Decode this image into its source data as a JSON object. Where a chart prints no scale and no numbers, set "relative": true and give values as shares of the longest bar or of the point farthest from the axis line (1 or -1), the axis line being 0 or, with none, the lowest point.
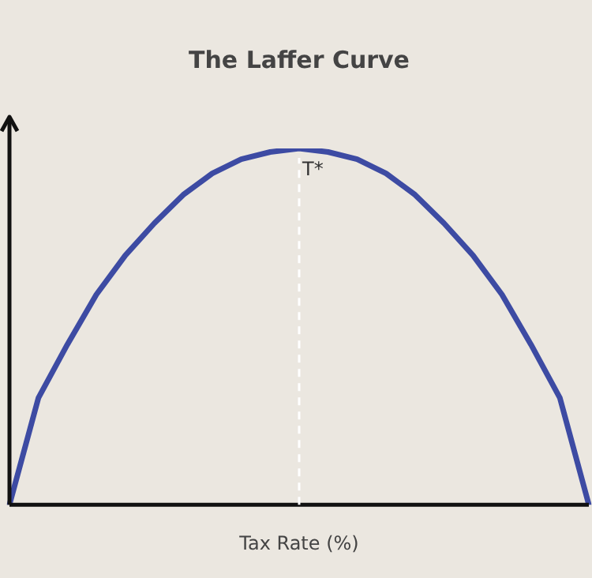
{
  "chart_data": {
    "type": "line",
    "title": "The Laffer Curve",
    "xlabel": "Tax Rate (%)",
    "relative": true,
    "marker": "none",
    "line_style": "solid",
    "categories": [
      null,
      null,
      null,
      null,
      null,
      null,
      null,
      null,
      null,
      null,
      null,
      null,
      null,
      null,
      null,
      null,
      null,
      null,
      null,
      null,
      null
    ],
    "series": [
      {
        "color": "#3d4ba3",
        "values": [
          0,
          0.3,
          0.45,
          0.59,
          0.7,
          0.79,
          0.87,
          0.93,
          0.97,
          0.99,
          1,
          0.99,
          0.97,
          0.93,
          0.87,
          0.79,
          0.7,
          0.59,
          0.45,
          0.3,
          0
        ]
      }
    ],
    "annotations": [
      "T*"
    ]
  }
}
